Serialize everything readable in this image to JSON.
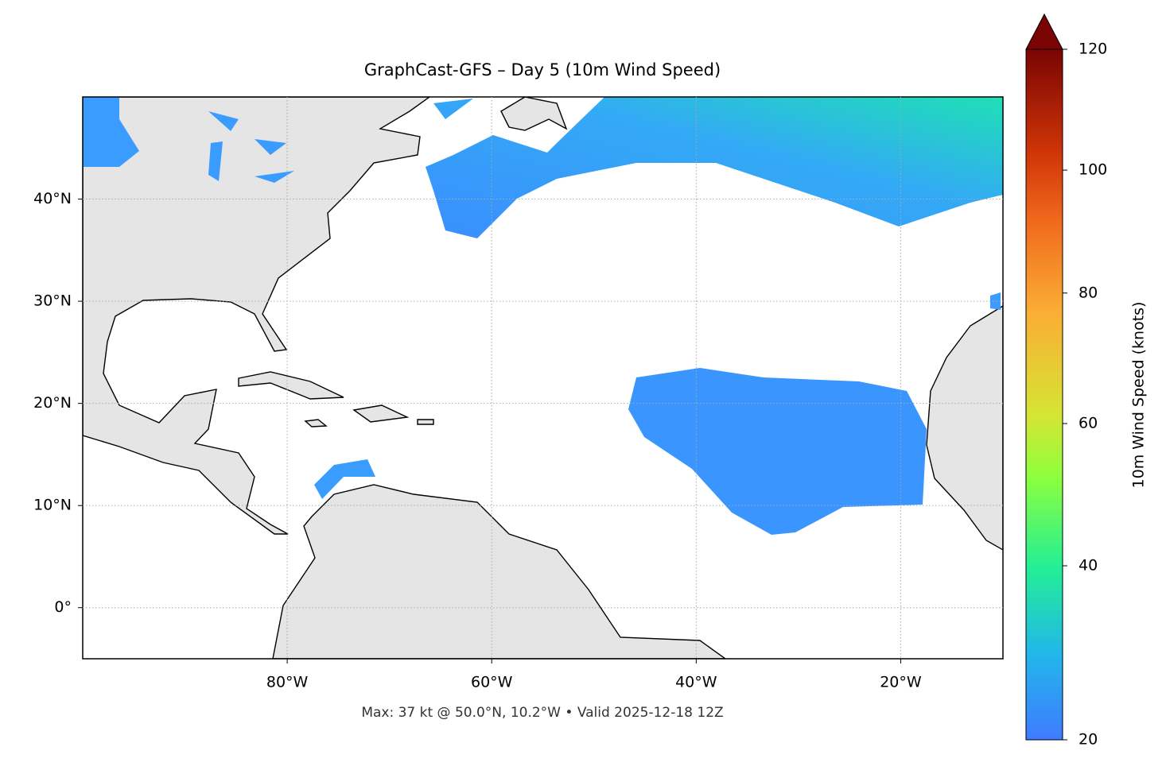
{
  "map": {
    "title": "GraphCast-GFS – Day 5 (10m Wind Speed)",
    "lon_range": [
      -100,
      -10
    ],
    "lat_range": [
      -5,
      50
    ],
    "xticks": [
      {
        "value": -80,
        "label": "80°W"
      },
      {
        "value": -60,
        "label": "60°W"
      },
      {
        "value": -40,
        "label": "40°W"
      },
      {
        "value": -20,
        "label": "20°W"
      }
    ],
    "yticks": [
      {
        "value": 40,
        "label": "40°N"
      },
      {
        "value": 30,
        "label": "30°N"
      },
      {
        "value": 20,
        "label": "20°N"
      },
      {
        "value": 10,
        "label": "10°N"
      },
      {
        "value": 0,
        "label": "0°"
      }
    ],
    "grid": true,
    "colorbar": {
      "label": "10m Wind Speed (knots)",
      "range": [
        20,
        120
      ],
      "ticks": [
        20,
        40,
        60,
        80,
        100,
        120
      ],
      "extend": "max"
    },
    "footer": "Max: 37 kt @ 50.0°N, 10.2°W • Valid 2025-12-18 12Z"
  }
}
